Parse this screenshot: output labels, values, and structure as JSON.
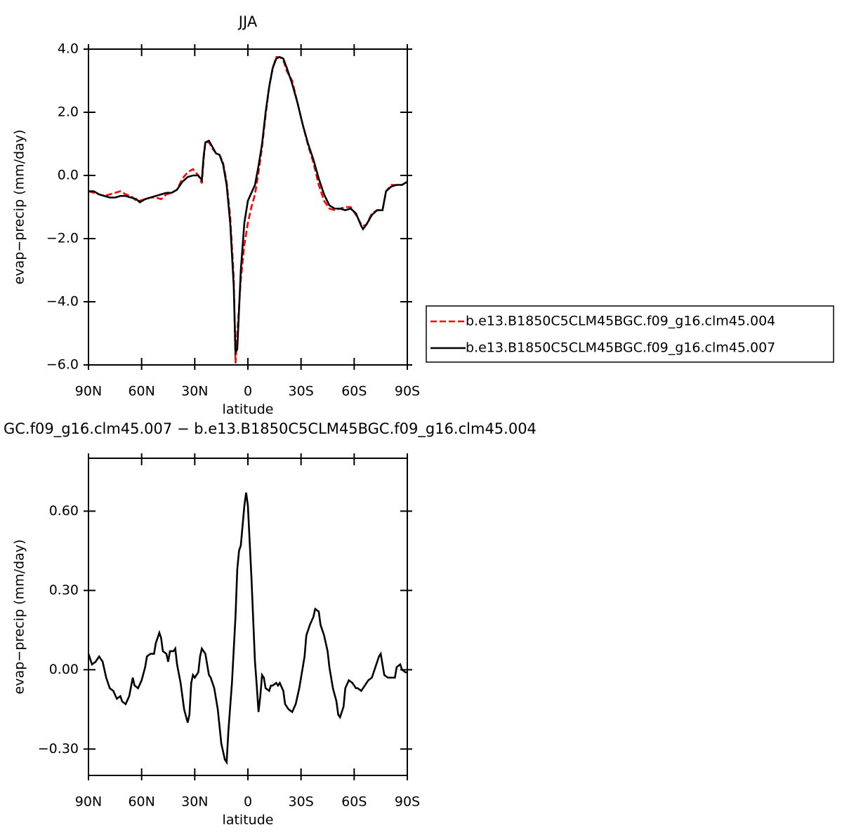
{
  "chart_data": [
    {
      "type": "line",
      "title": "JJA",
      "x_label": "latitude",
      "y_label": "evap−precip (mm/day)",
      "xlim": [
        90,
        -90
      ],
      "ylim": [
        -6,
        4
      ],
      "xticks": [
        {
          "value": 90,
          "label": "90N"
        },
        {
          "value": 60,
          "label": "60N"
        },
        {
          "value": 30,
          "label": "30N"
        },
        0,
        {
          "value": -30,
          "label": "30S"
        },
        {
          "value": -60,
          "label": "60S"
        },
        {
          "value": -90,
          "label": "90S"
        }
      ],
      "yticks": [
        {
          "value": 4,
          "label": "4.0"
        },
        {
          "value": 2,
          "label": "2.0"
        },
        {
          "value": 0,
          "label": "0.0"
        },
        {
          "value": -2,
          "label": "−2.0"
        },
        {
          "value": -4,
          "label": "−4.0"
        },
        {
          "value": -6,
          "label": "−6.0"
        }
      ],
      "legend": "right",
      "x": [
        90,
        87,
        84,
        81,
        78,
        75,
        72,
        69,
        66,
        63,
        61,
        58,
        55,
        52,
        49,
        46,
        43,
        40,
        37,
        34,
        31,
        28,
        26,
        25,
        24,
        22,
        20,
        18,
        16,
        14,
        12,
        10,
        8,
        7,
        6,
        4,
        2,
        0,
        -2,
        -4,
        -6,
        -8,
        -10,
        -12,
        -14,
        -16,
        -18,
        -20,
        -22,
        -25,
        -28,
        -31,
        -34,
        -37,
        -40,
        -43,
        -46,
        -49,
        -52,
        -55,
        -58,
        -61,
        -64,
        -65,
        -67,
        -70,
        -73,
        -76,
        -78,
        -81,
        -84,
        -87,
        -90
      ],
      "series": [
        {
          "name": "b.e13.B1850C5CLM45BGC.f09_g16.clm45.004",
          "color": "#ff0000",
          "linestyle": "dashed",
          "values": [
            -0.5,
            -0.55,
            -0.6,
            -0.65,
            -0.6,
            -0.55,
            -0.5,
            -0.6,
            -0.65,
            -0.8,
            -0.8,
            -0.75,
            -0.7,
            -0.7,
            -0.75,
            -0.6,
            -0.55,
            -0.45,
            -0.1,
            0.1,
            0.2,
            0.0,
            -0.25,
            0.5,
            1.05,
            1.05,
            0.85,
            0.7,
            0.65,
            0.4,
            -0.2,
            -1.3,
            -3.2,
            -5.95,
            -5.0,
            -3.3,
            -2.2,
            -1.5,
            -1.0,
            -0.6,
            0.1,
            0.9,
            1.9,
            2.8,
            3.4,
            3.75,
            3.75,
            3.65,
            3.3,
            3.0,
            2.3,
            1.6,
            0.95,
            0.4,
            -0.3,
            -0.8,
            -1.05,
            -1.1,
            -1.05,
            -1.0,
            -1.0,
            -1.25,
            -1.55,
            -1.6,
            -1.55,
            -1.2,
            -1.1,
            -1.1,
            -0.5,
            -0.3,
            -0.3,
            -0.3,
            -0.2
          ]
        },
        {
          "name": "b.e13.B1850C5CLM45BGC.f09_g16.clm45.007",
          "color": "#000000",
          "linestyle": "solid",
          "values": [
            -0.5,
            -0.5,
            -0.6,
            -0.65,
            -0.7,
            -0.7,
            -0.65,
            -0.65,
            -0.7,
            -0.75,
            -0.85,
            -0.75,
            -0.7,
            -0.65,
            -0.6,
            -0.55,
            -0.55,
            -0.45,
            -0.2,
            -0.05,
            0.0,
            0.0,
            -0.15,
            0.6,
            1.05,
            1.1,
            0.9,
            0.7,
            0.65,
            0.35,
            -0.3,
            -1.5,
            -3.5,
            -5.6,
            -5.5,
            -3.0,
            -1.5,
            -0.8,
            -0.55,
            -0.3,
            0.3,
            1.0,
            2.0,
            2.8,
            3.4,
            3.7,
            3.75,
            3.7,
            3.4,
            2.9,
            2.3,
            1.6,
            1.0,
            0.5,
            -0.1,
            -0.6,
            -0.95,
            -1.05,
            -1.05,
            -1.1,
            -1.05,
            -1.2,
            -1.6,
            -1.7,
            -1.55,
            -1.25,
            -1.1,
            -1.1,
            -0.5,
            -0.35,
            -0.3,
            -0.3,
            -0.2
          ]
        }
      ]
    },
    {
      "type": "line",
      "title": "GC.f09_g16.clm45.007 − b.e13.B1850C5CLM45BGC.f09_g16.clm45.004",
      "x_label": "latitude",
      "y_label": "evap−precip (mm/day)",
      "xlim": [
        90,
        -90
      ],
      "ylim": [
        -0.4,
        0.8
      ],
      "xticks": [
        {
          "value": 90,
          "label": "90N"
        },
        {
          "value": 60,
          "label": "60N"
        },
        {
          "value": 30,
          "label": "30N"
        },
        0,
        {
          "value": -30,
          "label": "30S"
        },
        {
          "value": -60,
          "label": "60S"
        },
        {
          "value": -90,
          "label": "90S"
        }
      ],
      "yticks": [
        {
          "value": 0.6,
          "label": "0.60"
        },
        {
          "value": 0.3,
          "label": "0.30"
        },
        {
          "value": 0,
          "label": "0.00"
        },
        {
          "value": -0.3,
          "label": "−0.30"
        }
      ],
      "x": [
        90,
        88,
        86,
        84,
        82,
        80,
        78,
        76,
        74,
        72,
        71,
        69,
        67,
        65,
        64,
        62,
        60,
        58,
        57,
        55,
        53,
        52,
        50,
        49,
        48,
        46,
        45,
        44,
        42,
        41,
        40,
        38,
        36,
        34,
        33,
        32,
        31,
        30,
        28,
        27,
        26,
        24,
        23,
        22,
        21,
        19,
        17,
        15,
        13,
        12,
        11,
        9,
        7,
        6,
        5,
        4,
        2,
        1,
        0,
        -2,
        -4,
        -5,
        -6,
        -7,
        -8,
        -9,
        -10,
        -12,
        -13,
        -14,
        -16,
        -17,
        -18,
        -20,
        -21,
        -23,
        -25,
        -27,
        -29,
        -30,
        -32,
        -33,
        -35,
        -37,
        -38,
        -40,
        -41,
        -43,
        -45,
        -46,
        -48,
        -50,
        -51,
        -52,
        -54,
        -55,
        -57,
        -59,
        -61,
        -62,
        -64,
        -66,
        -68,
        -70,
        -72,
        -74,
        -75,
        -76,
        -77,
        -79,
        -81,
        -83,
        -84,
        -86,
        -87,
        -89,
        -90
      ],
      "series": [
        {
          "color": "#000000",
          "linestyle": "solid",
          "values": [
            0.06,
            0.02,
            0.03,
            0.05,
            0.03,
            -0.03,
            -0.07,
            -0.08,
            -0.11,
            -0.1,
            -0.12,
            -0.13,
            -0.1,
            -0.03,
            -0.06,
            -0.07,
            -0.04,
            0.01,
            0.05,
            0.06,
            0.06,
            0.1,
            0.14,
            0.12,
            0.07,
            0.06,
            0.03,
            0.07,
            0.07,
            0.08,
            0.02,
            -0.05,
            -0.15,
            -0.2,
            -0.17,
            -0.05,
            -0.02,
            -0.03,
            -0.01,
            0.05,
            0.08,
            0.06,
            0.02,
            -0.02,
            -0.03,
            -0.07,
            -0.15,
            -0.28,
            -0.34,
            -0.35,
            -0.23,
            -0.05,
            0.2,
            0.38,
            0.45,
            0.47,
            0.62,
            0.67,
            0.62,
            0.35,
            0.03,
            -0.06,
            -0.16,
            -0.1,
            -0.02,
            -0.03,
            -0.07,
            -0.08,
            -0.06,
            -0.06,
            -0.05,
            -0.06,
            -0.05,
            -0.08,
            -0.13,
            -0.15,
            -0.16,
            -0.13,
            -0.07,
            -0.03,
            0.05,
            0.13,
            0.17,
            0.2,
            0.23,
            0.22,
            0.17,
            0.13,
            0.07,
            0.01,
            -0.07,
            -0.12,
            -0.17,
            -0.18,
            -0.14,
            -0.07,
            -0.04,
            -0.05,
            -0.07,
            -0.07,
            -0.08,
            -0.06,
            -0.04,
            -0.03,
            0.01,
            0.05,
            0.06,
            0.02,
            -0.02,
            -0.03,
            -0.03,
            -0.03,
            0.01,
            0.02,
            0.0,
            -0.01,
            -0.01
          ]
        }
      ]
    }
  ]
}
